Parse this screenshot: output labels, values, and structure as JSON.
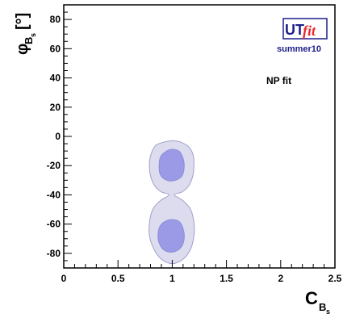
{
  "chart_data": {
    "type": "contour",
    "xlabel_main": "C",
    "xlabel_sub": "B",
    "xlabel_subsub": "s",
    "ylabel_main": "φ",
    "ylabel_sub": "B",
    "ylabel_subsub": "s",
    "ylabel_unit": "[°]",
    "xlim": [
      0,
      2.5
    ],
    "ylim": [
      -90,
      90
    ],
    "x_ticks": [
      {
        "value": 0,
        "label": "0"
      },
      {
        "value": 0.5,
        "label": "0.5"
      },
      {
        "value": 1,
        "label": "1"
      },
      {
        "value": 1.5,
        "label": "1.5"
      },
      {
        "value": 2,
        "label": "2"
      },
      {
        "value": 2.5,
        "label": "2.5"
      }
    ],
    "y_ticks": [
      {
        "value": 80,
        "label": "80"
      },
      {
        "value": 60,
        "label": "60"
      },
      {
        "value": 40,
        "label": "40"
      },
      {
        "value": 20,
        "label": "20"
      },
      {
        "value": 0,
        "label": "0"
      },
      {
        "value": -20,
        "label": "-20"
      },
      {
        "value": -40,
        "label": "-40"
      },
      {
        "value": -60,
        "label": "-60"
      },
      {
        "value": -80,
        "label": "-80"
      }
    ],
    "regions": [
      {
        "level": "95%",
        "color": "#dcdcee",
        "stroke": "#a0a0cc",
        "points": [
          [
            1.0,
            -3
          ],
          [
            1.08,
            -4
          ],
          [
            1.15,
            -7
          ],
          [
            1.19,
            -12
          ],
          [
            1.2,
            -18
          ],
          [
            1.19,
            -27
          ],
          [
            1.15,
            -34
          ],
          [
            1.09,
            -38
          ],
          [
            1.02,
            -40
          ],
          [
            1.1,
            -44
          ],
          [
            1.17,
            -50
          ],
          [
            1.2,
            -59
          ],
          [
            1.2,
            -68
          ],
          [
            1.17,
            -77
          ],
          [
            1.1,
            -84
          ],
          [
            1.0,
            -87
          ],
          [
            0.9,
            -84
          ],
          [
            0.83,
            -77
          ],
          [
            0.79,
            -68
          ],
          [
            0.79,
            -59
          ],
          [
            0.82,
            -50
          ],
          [
            0.89,
            -44
          ],
          [
            0.97,
            -40
          ],
          [
            0.9,
            -38
          ],
          [
            0.84,
            -34
          ],
          [
            0.8,
            -27
          ],
          [
            0.79,
            -18
          ],
          [
            0.81,
            -11
          ],
          [
            0.85,
            -6
          ],
          [
            0.92,
            -4
          ]
        ]
      },
      {
        "level": "68%",
        "color": "#9a9ae6",
        "stroke": "#8c8cd8",
        "points": [
          [
            0.98,
            -9
          ],
          [
            1.06,
            -10
          ],
          [
            1.1,
            -15
          ],
          [
            1.11,
            -21
          ],
          [
            1.09,
            -27
          ],
          [
            1.03,
            -30
          ],
          [
            0.95,
            -30
          ],
          [
            0.89,
            -26
          ],
          [
            0.88,
            -19
          ],
          [
            0.9,
            -13
          ]
        ]
      },
      {
        "level": "68%",
        "color": "#9a9ae6",
        "stroke": "#8c8cd8",
        "points": [
          [
            0.98,
            -57
          ],
          [
            1.06,
            -58
          ],
          [
            1.1,
            -63
          ],
          [
            1.11,
            -70
          ],
          [
            1.08,
            -76
          ],
          [
            1.01,
            -79
          ],
          [
            0.93,
            -78
          ],
          [
            0.88,
            -73
          ],
          [
            0.87,
            -66
          ],
          [
            0.9,
            -60
          ]
        ]
      }
    ]
  },
  "annotation": "NP fit",
  "logo": {
    "brand_main": "UT",
    "brand_italic": "fit",
    "subtitle": "summer10"
  }
}
